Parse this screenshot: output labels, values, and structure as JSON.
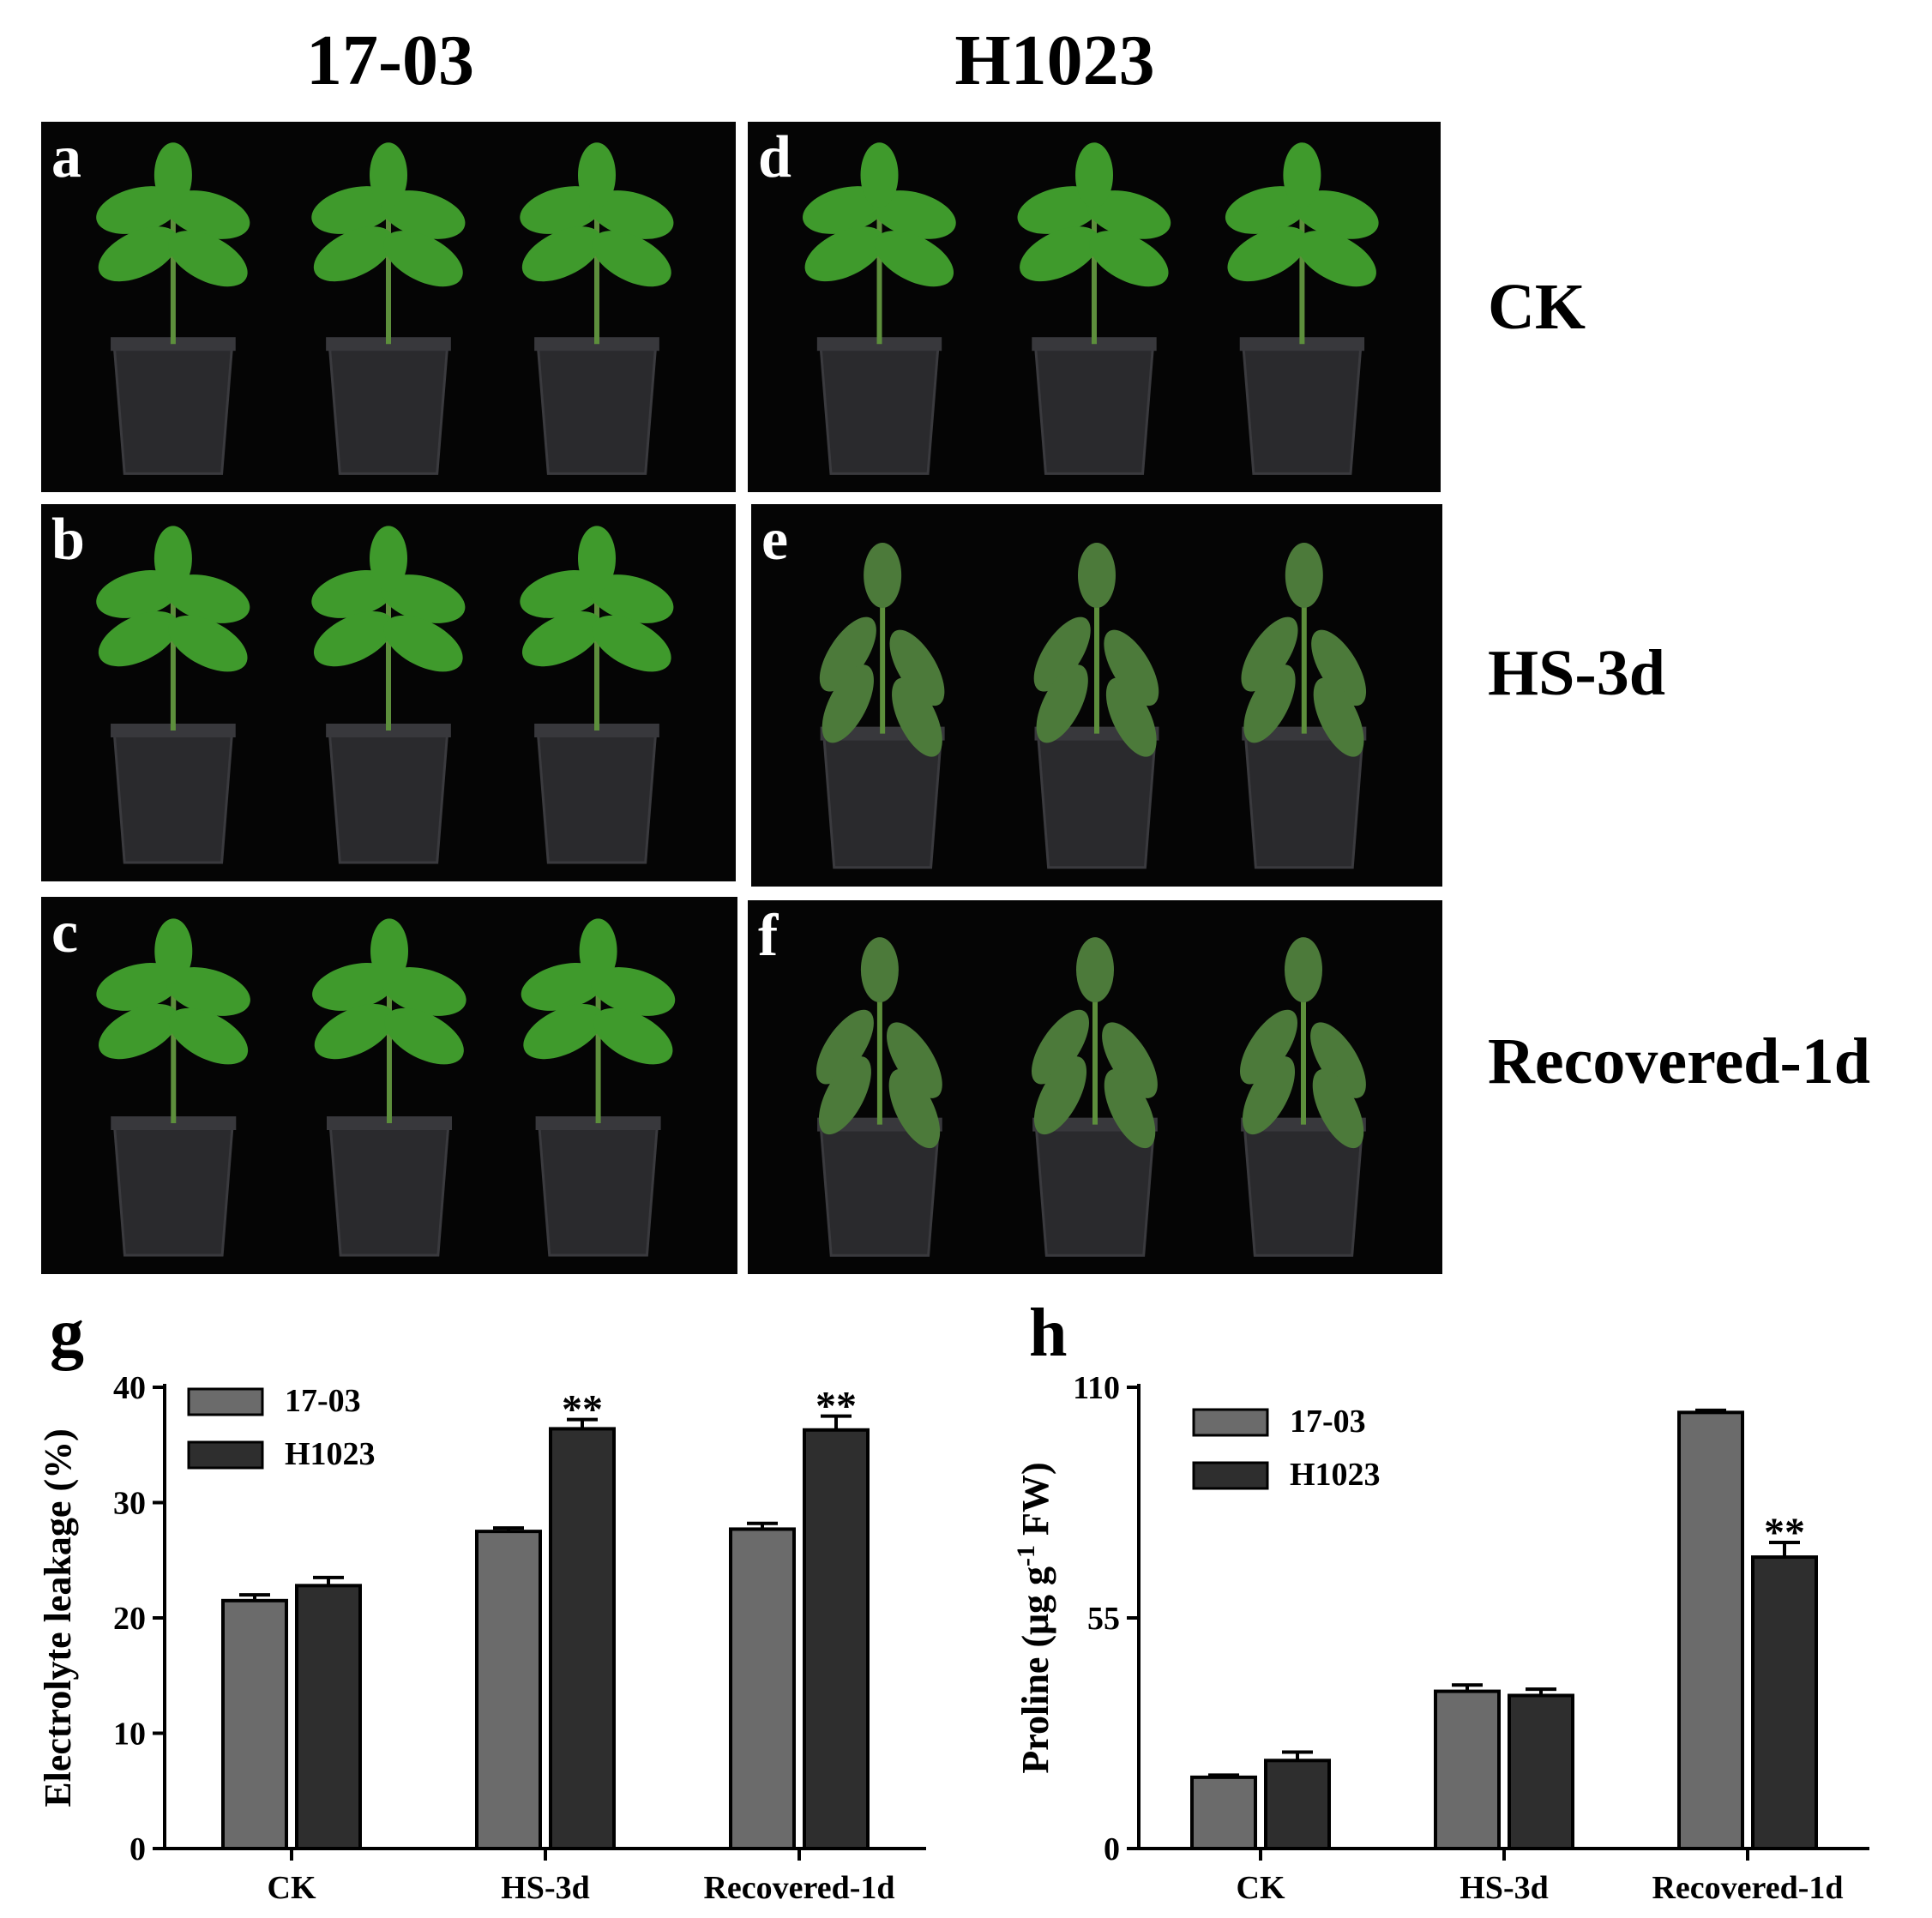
{
  "columns": [
    "17-03",
    "H1023"
  ],
  "rows": [
    "CK",
    "HS-3d",
    "Recovered-1d"
  ],
  "panels": [
    {
      "label": "a",
      "group": "17-03",
      "condition": "CK"
    },
    {
      "label": "b",
      "group": "17-03",
      "condition": "HS-3d"
    },
    {
      "label": "c",
      "group": "17-03",
      "condition": "Recovered-1d"
    },
    {
      "label": "d",
      "group": "H1023",
      "condition": "CK"
    },
    {
      "label": "e",
      "group": "H1023",
      "condition": "HS-3d"
    },
    {
      "label": "f",
      "group": "H1023",
      "condition": "Recovered-1d"
    }
  ],
  "colors": {
    "series_1": "#6b6b6b",
    "series_2": "#2e2e2e",
    "photo_background": "#050505",
    "leaf_healthy": "#3f9a2c",
    "leaf_stressed": "#4c7a3a",
    "pot": "#2a2a2d"
  },
  "chart_data": [
    {
      "panel": "g",
      "type": "bar",
      "categories": [
        "CK",
        "HS-3d",
        "Recovered-1d"
      ],
      "series": [
        {
          "name": "17-03",
          "values": [
            21.5,
            27.5,
            27.7
          ],
          "errors": [
            0.5,
            0.3,
            0.5
          ],
          "markers": [
            "",
            "",
            ""
          ]
        },
        {
          "name": "H1023",
          "values": [
            22.8,
            36.4,
            36.3
          ],
          "errors": [
            0.7,
            0.8,
            1.2
          ],
          "markers": [
            "",
            "**",
            "**"
          ]
        }
      ],
      "ylabel": "Electrolyte leakage (%)",
      "ylim": [
        0,
        40
      ],
      "yticks": [
        "0",
        "10",
        "20",
        "30",
        "40"
      ],
      "legend_position": "top-left",
      "grid": false
    },
    {
      "panel": "h",
      "type": "bar",
      "categories": [
        "CK",
        "HS-3d",
        "Recovered-1d"
      ],
      "series": [
        {
          "name": "17-03",
          "values": [
            17.0,
            37.5,
            104.0
          ],
          "errors": [
            0.5,
            1.5,
            0.5
          ],
          "markers": [
            "",
            "",
            ""
          ]
        },
        {
          "name": "H1023",
          "values": [
            21.0,
            36.5,
            69.5
          ],
          "errors": [
            2.0,
            1.5,
            3.5
          ],
          "markers": [
            "",
            "",
            "**"
          ]
        }
      ],
      "ylabel": "Proline (μg g-1 FW)",
      "ylabel_parts": {
        "before": "Proline (μg g",
        "superscript": "-1",
        "after": " FW)"
      },
      "ylim": [
        0,
        110
      ],
      "yticks": [
        "0",
        "55",
        "110"
      ],
      "legend_position": "top-left",
      "grid": false
    }
  ]
}
